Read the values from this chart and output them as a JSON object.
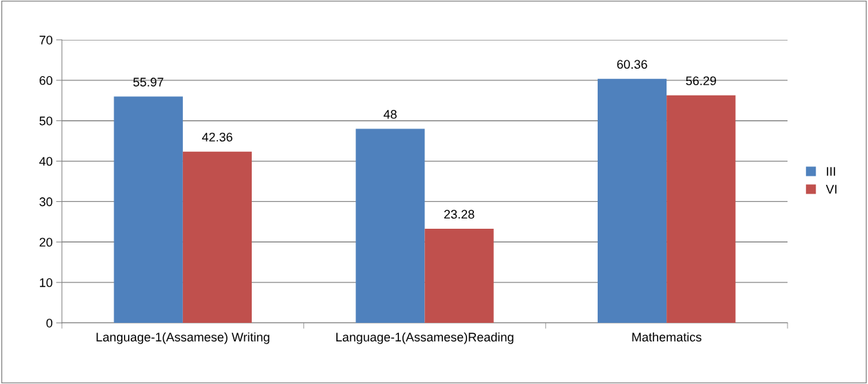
{
  "chart_data": {
    "type": "bar",
    "categories": [
      "Language-1(Assamese) Writing",
      "Language-1(Assamese)Reading",
      "Mathematics"
    ],
    "series": [
      {
        "name": "III",
        "color": "#4f81bd",
        "values": [
          55.97,
          48,
          60.36
        ]
      },
      {
        "name": "VI",
        "color": "#c0504d",
        "values": [
          42.36,
          23.28,
          56.29
        ]
      }
    ],
    "ylim": [
      0,
      70
    ],
    "yticks": [
      0,
      10,
      20,
      30,
      40,
      50,
      60,
      70
    ],
    "grid": "y",
    "legend": "right",
    "data_labels": true
  }
}
